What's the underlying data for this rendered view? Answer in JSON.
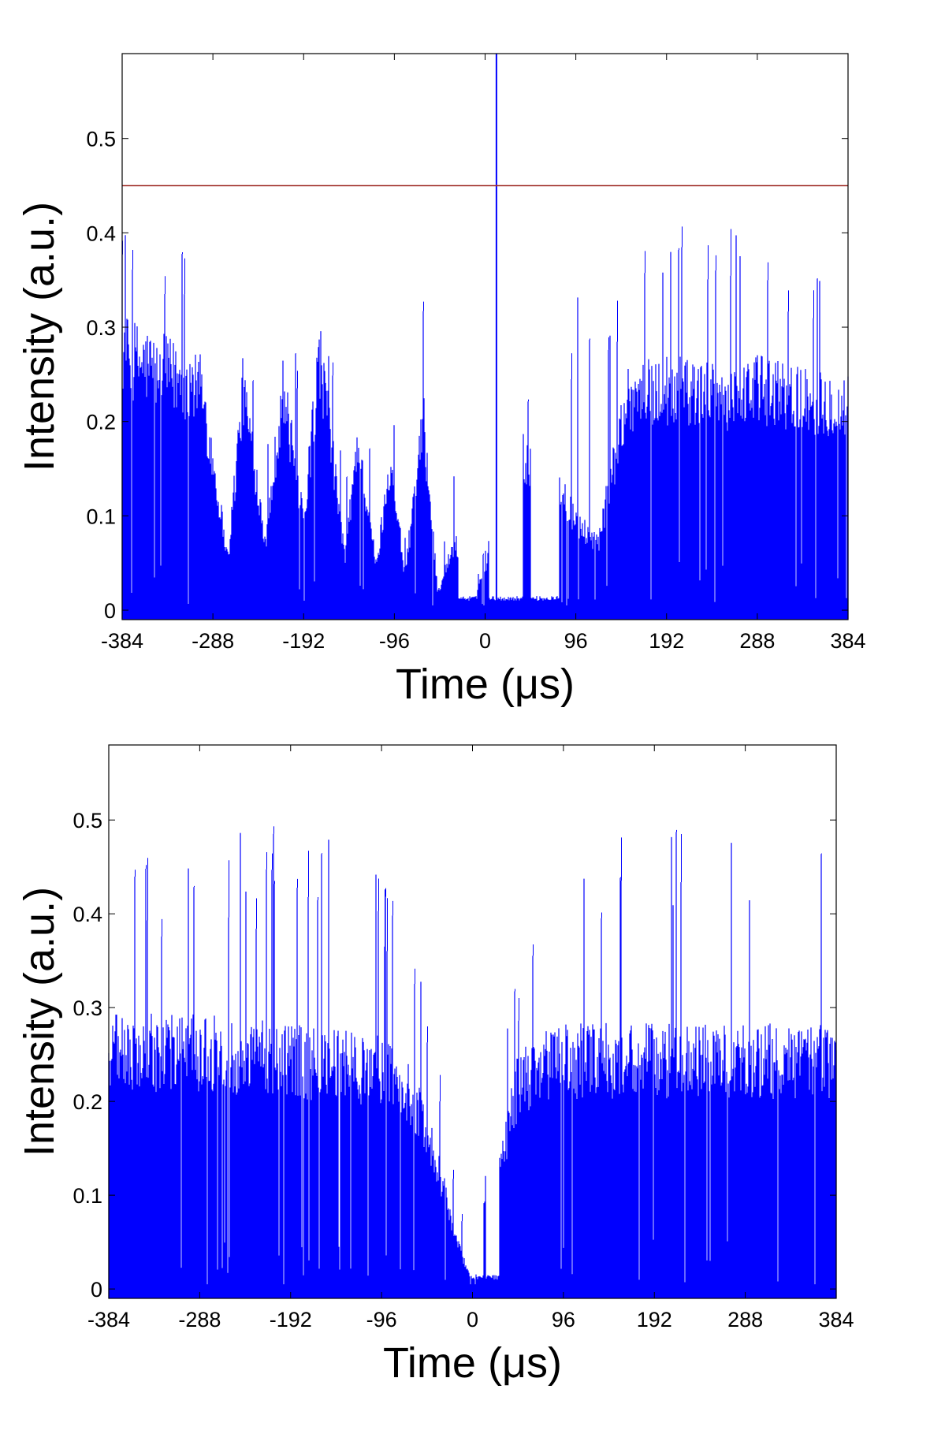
{
  "chart_data": [
    {
      "type": "bar",
      "title": "",
      "xlabel": "Time (μs)",
      "ylabel": "Intensity (a.u.)",
      "xlim": [
        -384,
        384
      ],
      "ylim": [
        -0.01,
        0.59
      ],
      "xticks": [
        -384,
        -288,
        -192,
        -96,
        0,
        96,
        192,
        288,
        384
      ],
      "yticks": [
        0,
        0.1,
        0.2,
        0.3,
        0.4,
        0.5
      ],
      "grid": false,
      "color": "#0000ff",
      "threshold": {
        "value": 0.45,
        "color": "#a0302a"
      },
      "peak": {
        "x": 12,
        "value": 0.59
      },
      "gaps": [
        [
          -28,
          -8
        ],
        [
          4,
          40
        ],
        [
          48,
          78
        ]
      ],
      "envelope": [
        {
          "x": -384,
          "value": 0.3,
          "max": 0.4
        },
        {
          "x": -300,
          "value": 0.26,
          "max": 0.38
        },
        {
          "x": -272,
          "value": 0.06,
          "max": 0.1
        },
        {
          "x": -256,
          "value": 0.26,
          "max": 0.35
        },
        {
          "x": -232,
          "value": 0.08,
          "max": 0.15
        },
        {
          "x": -214,
          "value": 0.26,
          "max": 0.39
        },
        {
          "x": -192,
          "value": 0.1,
          "max": 0.2
        },
        {
          "x": -175,
          "value": 0.3,
          "max": 0.41
        },
        {
          "x": -148,
          "value": 0.06,
          "max": 0.12
        },
        {
          "x": -135,
          "value": 0.2,
          "max": 0.3
        },
        {
          "x": -115,
          "value": 0.05,
          "max": 0.1
        },
        {
          "x": -100,
          "value": 0.18,
          "max": 0.28
        },
        {
          "x": -85,
          "value": 0.04,
          "max": 0.08
        },
        {
          "x": -65,
          "value": 0.22,
          "max": 0.36
        },
        {
          "x": -50,
          "value": 0.02,
          "max": 0.05
        },
        {
          "x": -32,
          "value": 0.08,
          "max": 0.15
        },
        {
          "x": -10,
          "value": 0.02,
          "max": 0.03
        },
        {
          "x": 40,
          "value": 0.18,
          "max": 0.22
        },
        {
          "x": 78,
          "value": 0.15,
          "max": 0.25
        },
        {
          "x": 96,
          "value": 0.1,
          "max": 0.35
        },
        {
          "x": 120,
          "value": 0.08,
          "max": 0.25
        },
        {
          "x": 150,
          "value": 0.25,
          "max": 0.38
        },
        {
          "x": 192,
          "value": 0.26,
          "max": 0.41
        },
        {
          "x": 240,
          "value": 0.25,
          "max": 0.4
        },
        {
          "x": 288,
          "value": 0.26,
          "max": 0.41
        },
        {
          "x": 340,
          "value": 0.25,
          "max": 0.36
        },
        {
          "x": 384,
          "value": 0.24,
          "max": 0.33
        }
      ]
    },
    {
      "type": "bar",
      "title": "",
      "xlabel": "Time (μs)",
      "ylabel": "Intensity (a.u.)",
      "xlim": [
        -384,
        384
      ],
      "ylim": [
        -0.01,
        0.58
      ],
      "xticks": [
        -384,
        -288,
        -192,
        -96,
        0,
        96,
        192,
        288,
        384
      ],
      "yticks": [
        0,
        0.1,
        0.2,
        0.3,
        0.4,
        0.5
      ],
      "grid": false,
      "color": "#0000ff",
      "gaps": [
        [
          4,
          12
        ],
        [
          14,
          28
        ]
      ],
      "envelope": [
        {
          "x": -384,
          "value": 0.28,
          "max": 0.45
        },
        {
          "x": -288,
          "value": 0.28,
          "max": 0.48
        },
        {
          "x": -192,
          "value": 0.27,
          "max": 0.5
        },
        {
          "x": -96,
          "value": 0.26,
          "max": 0.45
        },
        {
          "x": -60,
          "value": 0.22,
          "max": 0.35
        },
        {
          "x": -35,
          "value": 0.14,
          "max": 0.25
        },
        {
          "x": -18,
          "value": 0.06,
          "max": 0.12
        },
        {
          "x": -5,
          "value": 0.02,
          "max": 0.05
        },
        {
          "x": 3,
          "value": 0.01,
          "max": 0.02
        },
        {
          "x": 13,
          "value": 0.12,
          "max": 0.23
        },
        {
          "x": 30,
          "value": 0.15,
          "max": 0.3
        },
        {
          "x": 50,
          "value": 0.25,
          "max": 0.33
        },
        {
          "x": 96,
          "value": 0.27,
          "max": 0.47
        },
        {
          "x": 192,
          "value": 0.27,
          "max": 0.5
        },
        {
          "x": 288,
          "value": 0.27,
          "max": 0.55
        },
        {
          "x": 384,
          "value": 0.27,
          "max": 0.46
        }
      ]
    }
  ]
}
